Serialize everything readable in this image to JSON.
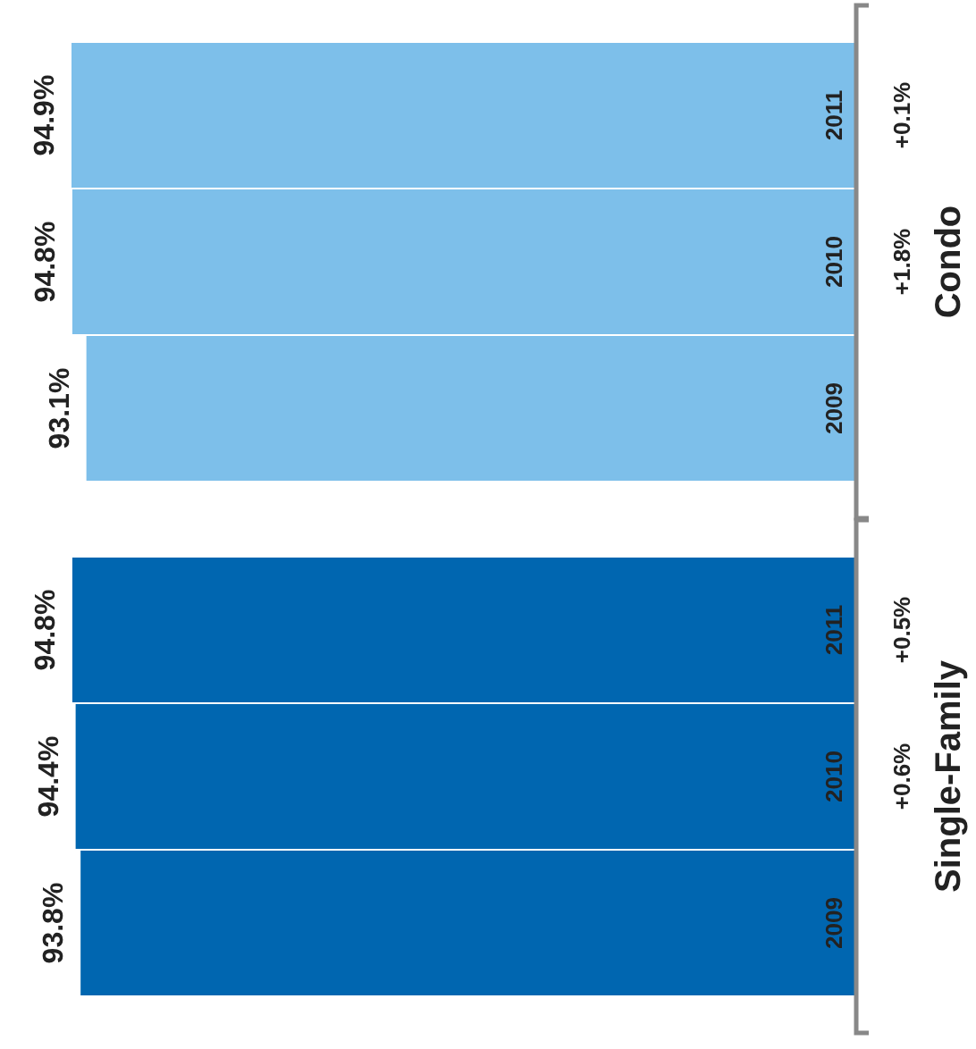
{
  "chart_data": {
    "type": "bar",
    "orientation": "horizontal",
    "categories": [
      "Condo",
      "Single-Family"
    ],
    "series": [
      {
        "name": "2011",
        "colors": [
          "#7dbfea",
          "#0066b0"
        ],
        "values": [
          94.9,
          94.8
        ],
        "value_labels": [
          "94.9%",
          "94.8%"
        ]
      },
      {
        "name": "2010",
        "colors": [
          "#7dbfea",
          "#0066b0"
        ],
        "values": [
          94.8,
          94.4
        ],
        "value_labels": [
          "94.8%",
          "94.4%"
        ]
      },
      {
        "name": "2009",
        "colors": [
          "#7dbfea",
          "#0066b0"
        ],
        "values": [
          93.1,
          93.8
        ],
        "value_labels": [
          "93.1%",
          "93.8%"
        ]
      }
    ],
    "tick_labels": "y",
    "annotations": [
      "+0.1%",
      "+1.8%",
      "+0.5%",
      "+0.6%"
    ]
  }
}
